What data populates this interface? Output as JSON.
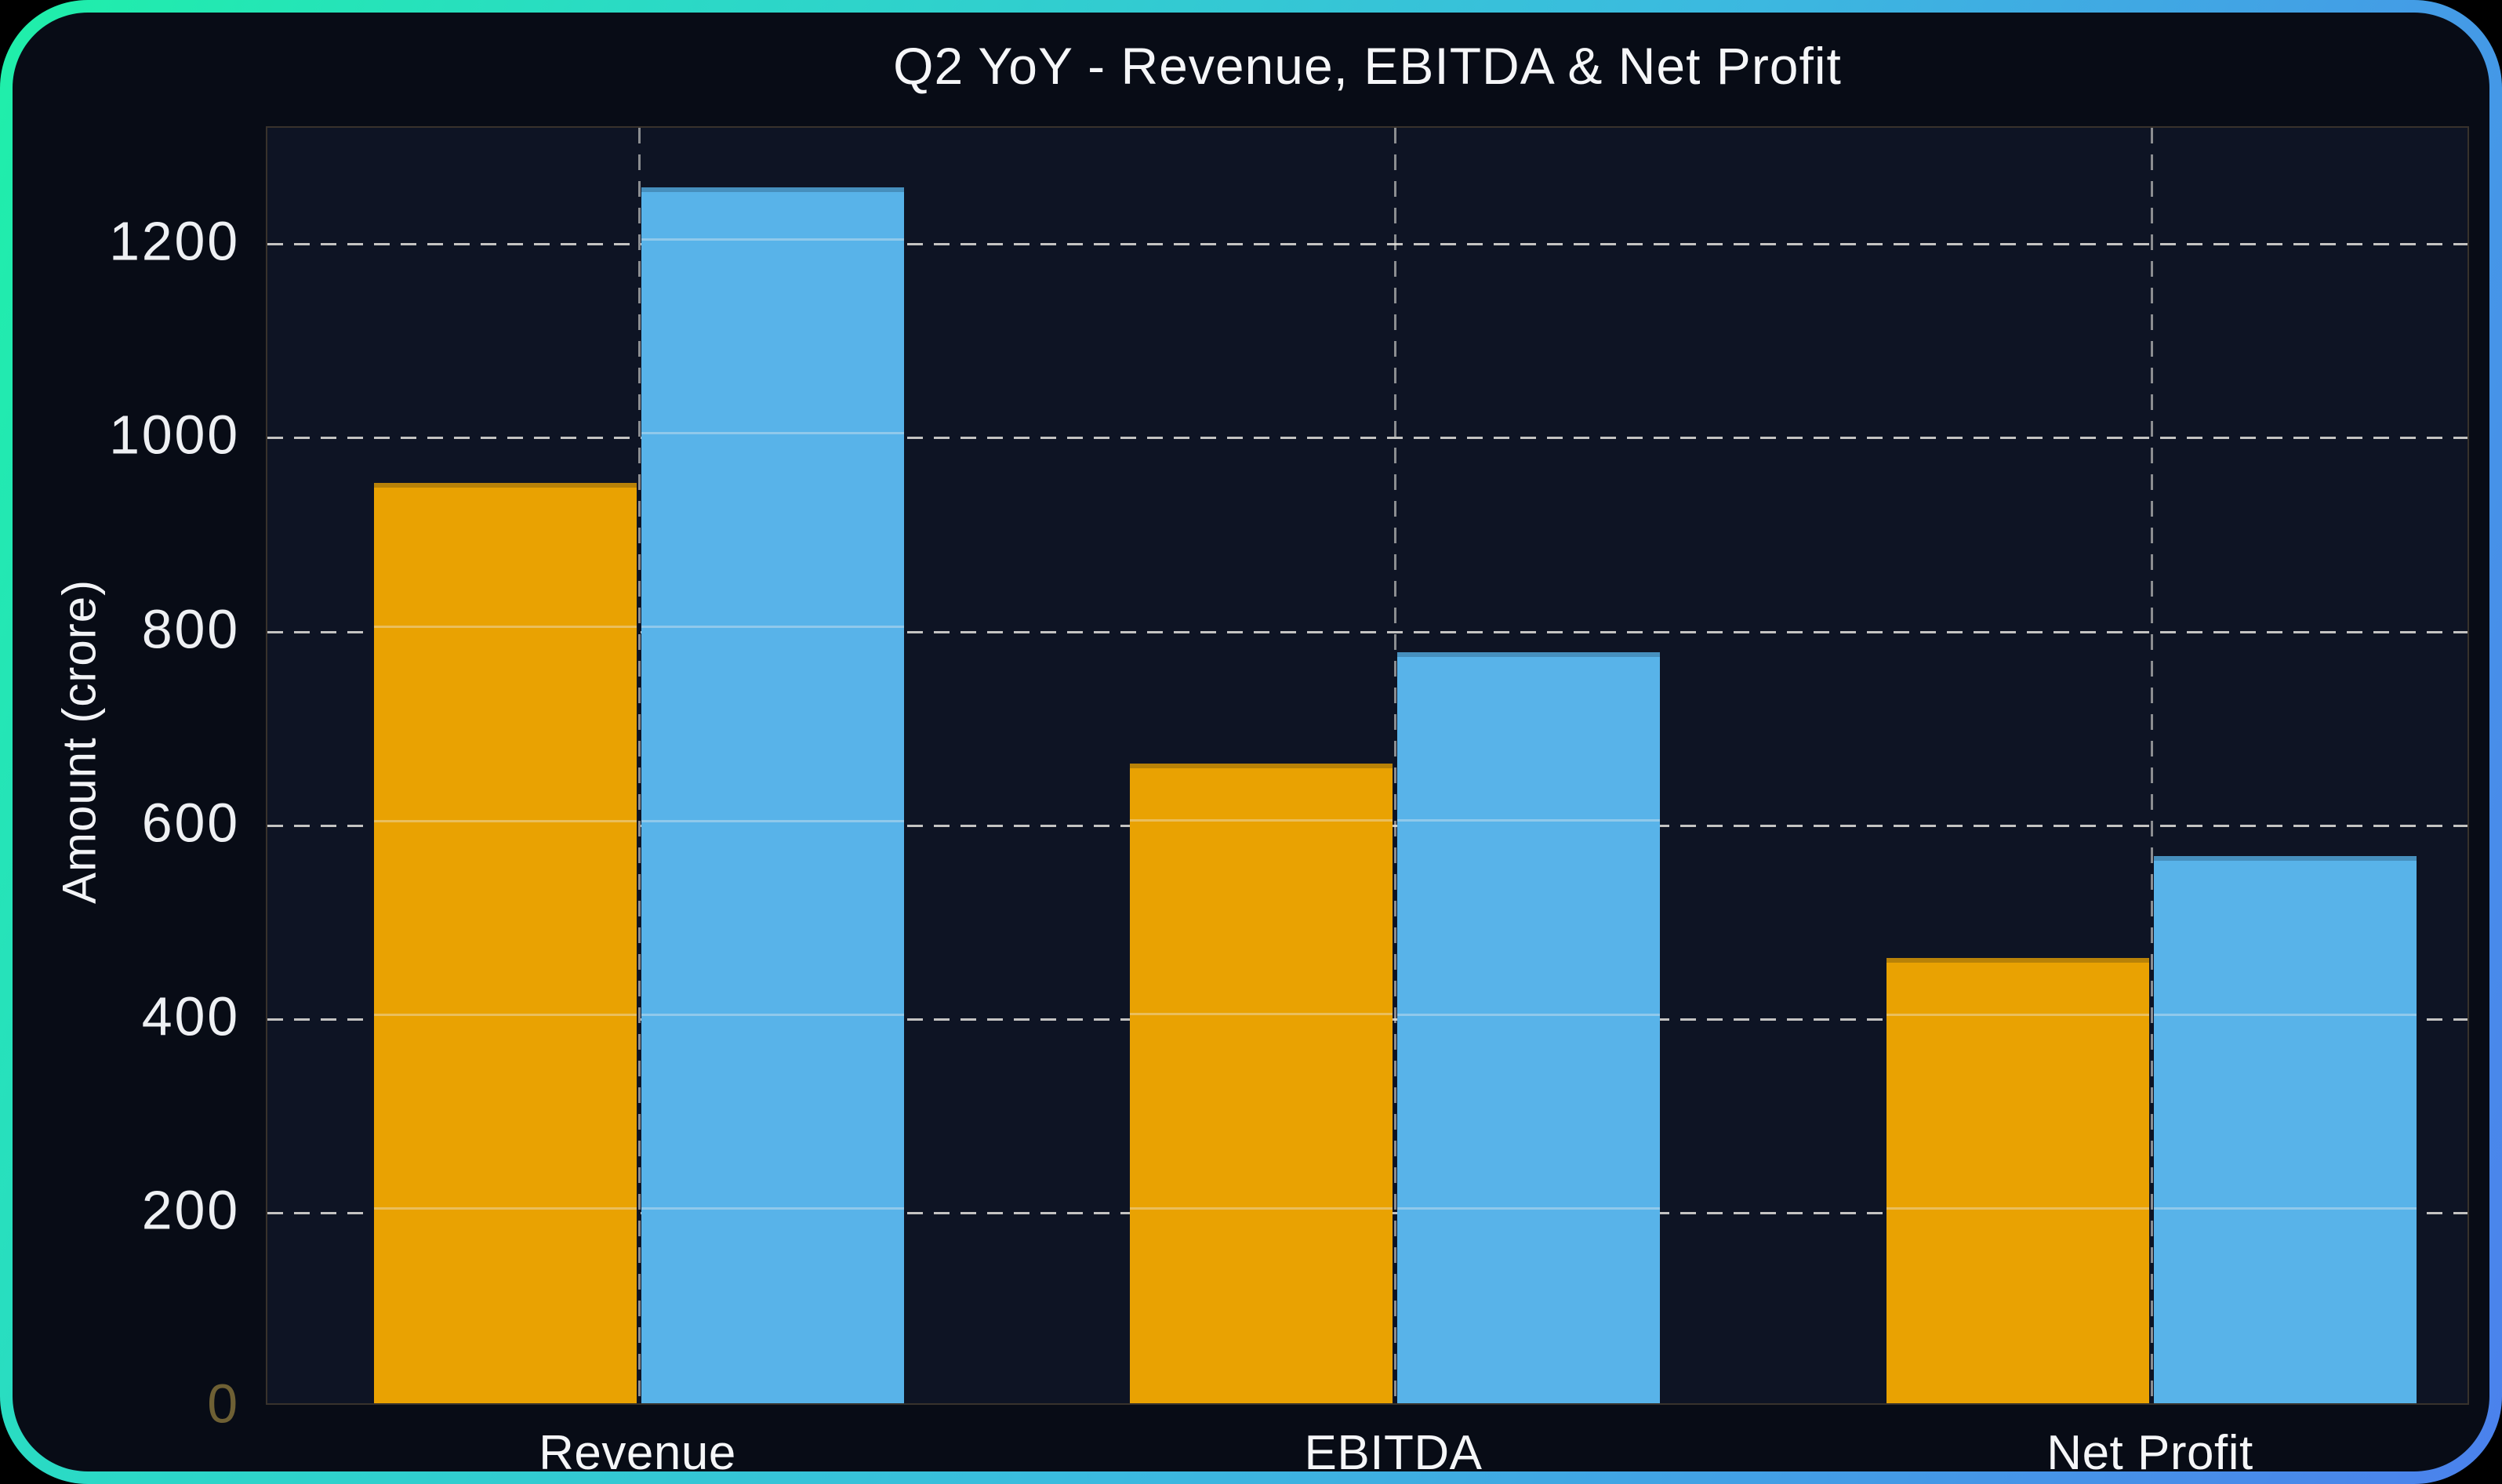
{
  "card": {
    "background": "#080C16",
    "border_gradient": [
      "#1FEFA9",
      "#2BD9C6",
      "#3BBADF",
      "#4B81EC"
    ]
  },
  "chart_data": {
    "type": "bar",
    "title": "Q2 YoY - Revenue, EBITDA & Net Profit",
    "ylabel": "Amount (crore)",
    "xlabel": "",
    "categories": [
      "Revenue",
      "EBITDA",
      "Net Profit"
    ],
    "series": [
      {
        "name": "Series 1",
        "color": "#E9A202",
        "values": [
          950,
          660,
          460
        ]
      },
      {
        "name": "Series 2",
        "color": "#58B3E9",
        "values": [
          1255,
          775,
          565
        ]
      }
    ],
    "yticks": [
      0,
      200,
      400,
      600,
      800,
      1000,
      1200
    ],
    "ylim": [
      0,
      1320
    ],
    "grid": {
      "horizontal": "dashed",
      "vertical": "dashed-at-category-centers",
      "color": "#E4E2DD"
    },
    "legend": "none",
    "plot_background": "#0E1424",
    "text_color": "#F5F6F8",
    "zero_tick_color": "#6E6034"
  }
}
